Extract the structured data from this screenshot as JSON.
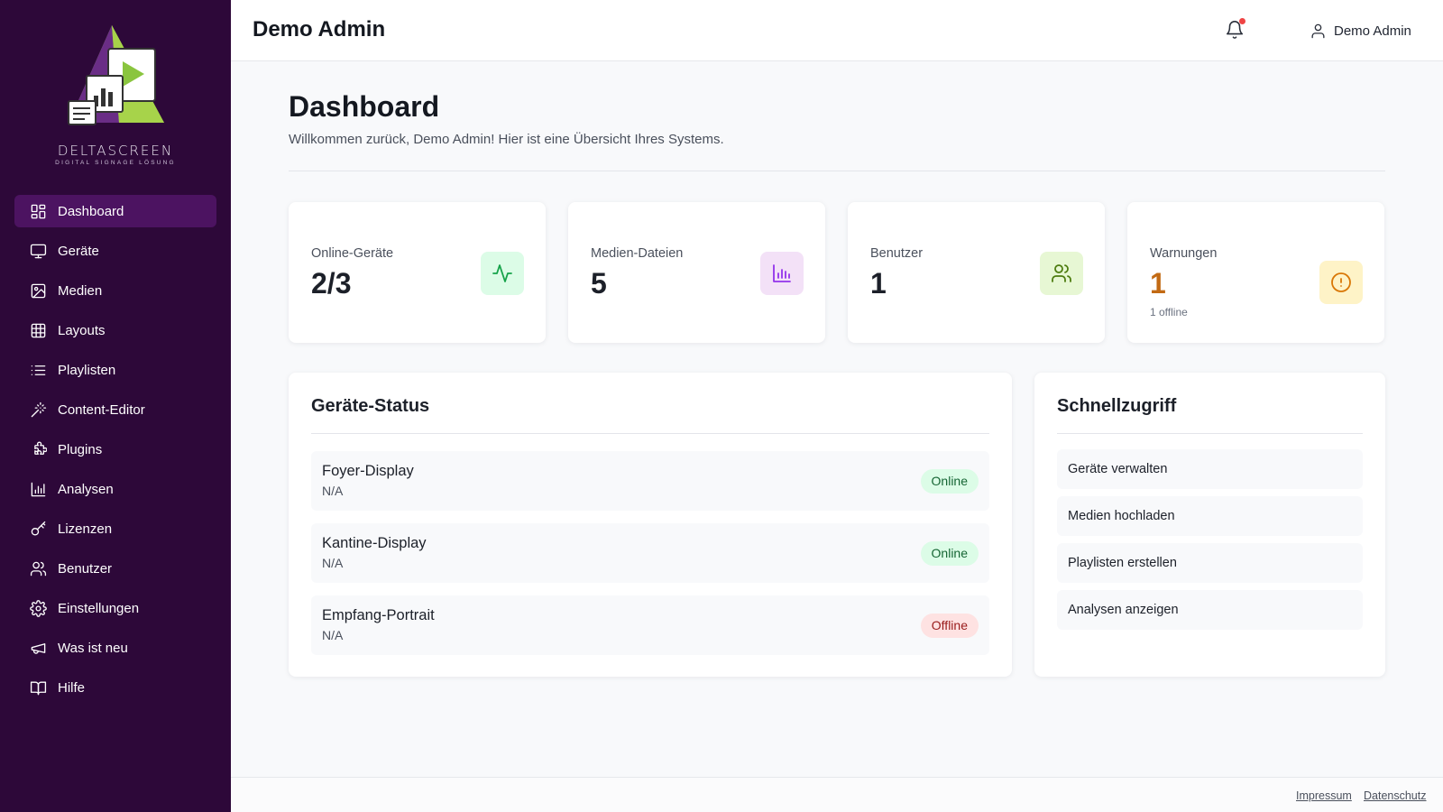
{
  "brand": {
    "logo_text": "DELTASCREEN",
    "logo_subtext": "DIGITAL SIGNAGE LÖSUNG"
  },
  "sidebar": {
    "items": [
      {
        "label": "Dashboard",
        "icon": "dashboard-icon",
        "active": true
      },
      {
        "label": "Geräte",
        "icon": "monitor-icon"
      },
      {
        "label": "Medien",
        "icon": "image-icon"
      },
      {
        "label": "Layouts",
        "icon": "grid-icon"
      },
      {
        "label": "Playlisten",
        "icon": "list-icon"
      },
      {
        "label": "Content-Editor",
        "icon": "magic-wand-icon"
      },
      {
        "label": "Plugins",
        "icon": "puzzle-icon"
      },
      {
        "label": "Analysen",
        "icon": "bar-chart-icon"
      },
      {
        "label": "Lizenzen",
        "icon": "key-icon"
      },
      {
        "label": "Benutzer",
        "icon": "users-icon"
      },
      {
        "label": "Einstellungen",
        "icon": "gear-icon"
      },
      {
        "label": "Was ist neu",
        "icon": "megaphone-icon"
      },
      {
        "label": "Hilfe",
        "icon": "book-icon"
      }
    ]
  },
  "header": {
    "title": "Demo Admin",
    "user_name": "Demo Admin",
    "notification_dot": true
  },
  "main": {
    "title": "Dashboard",
    "subtitle": "Willkommen zurück, Demo Admin! Hier ist eine Übersicht Ihres Systems."
  },
  "stats": [
    {
      "label": "Online-Geräte",
      "value": "2/3",
      "icon": "activity-icon",
      "icon_bg": "#dcfce7",
      "icon_color": "#16a34a"
    },
    {
      "label": "Medien-Dateien",
      "value": "5",
      "icon": "bar-chart-icon",
      "icon_bg": "#f3e1f7",
      "icon_color": "#9333ea"
    },
    {
      "label": "Benutzer",
      "value": "1",
      "icon": "users-icon",
      "icon_bg": "#e7f7d4",
      "icon_color": "#4d7c0f"
    },
    {
      "label": "Warnungen",
      "value": "1",
      "note": "1 offline",
      "icon": "alert-circle-icon",
      "icon_bg": "#fef3c7",
      "icon_color": "#d97706"
    }
  ],
  "device_status": {
    "title": "Geräte-Status",
    "devices": [
      {
        "name": "Foyer-Display",
        "sub": "N/A",
        "status": "Online"
      },
      {
        "name": "Kantine-Display",
        "sub": "N/A",
        "status": "Online"
      },
      {
        "name": "Empfang-Portrait",
        "sub": "N/A",
        "status": "Offline"
      }
    ]
  },
  "quick_access": {
    "title": "Schnellzugriff",
    "links": [
      "Geräte verwalten",
      "Medien hochladen",
      "Playlisten erstellen",
      "Analysen anzeigen"
    ]
  },
  "footer": {
    "impressum": "Impressum",
    "datenschutz": "Datenschutz"
  }
}
